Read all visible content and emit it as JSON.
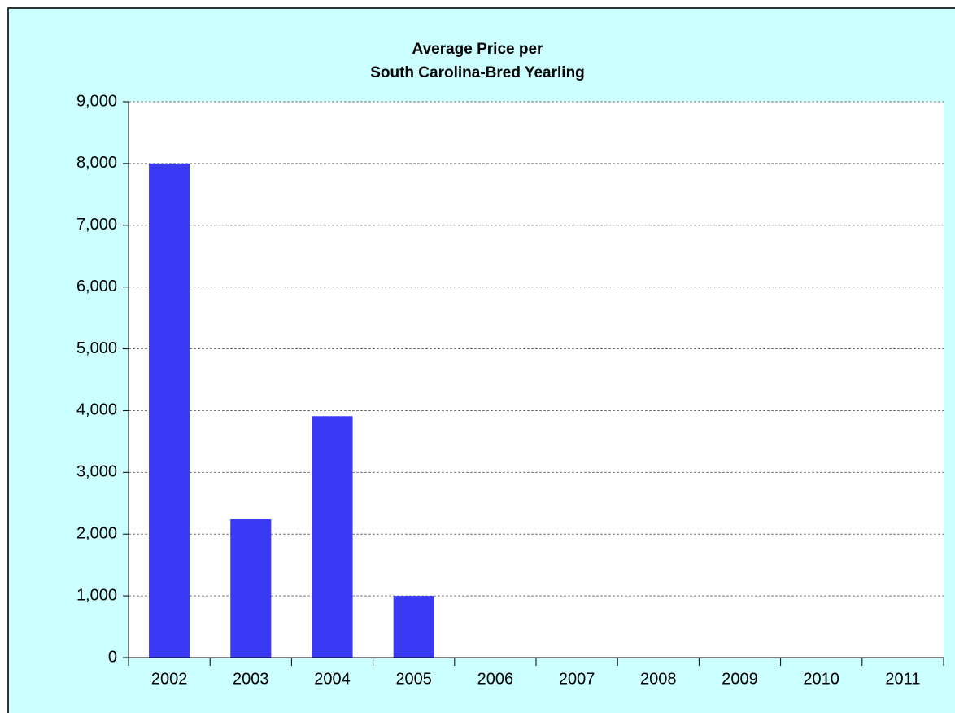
{
  "chart_data": {
    "type": "bar",
    "title": [
      "Average Price per",
      "South Carolina-Bred Yearling"
    ],
    "categories": [
      "2002",
      "2003",
      "2004",
      "2005",
      "2006",
      "2007",
      "2008",
      "2009",
      "2010",
      "2011"
    ],
    "values": [
      8000,
      2240,
      3910,
      1000,
      null,
      null,
      null,
      null,
      null,
      null
    ],
    "color": "#3a3af5",
    "ylim": [
      0,
      9000
    ],
    "yticks": [
      0,
      {
        "value": 1000,
        "label": "1,000"
      },
      {
        "value": 2000,
        "label": "2,000"
      },
      {
        "value": 3000,
        "label": "3,000"
      },
      {
        "value": 4000,
        "label": "4,000"
      },
      {
        "value": 5000,
        "label": "5,000"
      },
      {
        "value": 6000,
        "label": "6,000"
      },
      {
        "value": 7000,
        "label": "7,000"
      },
      {
        "value": 8000,
        "label": "8,000"
      },
      {
        "value": 9000,
        "label": "9,000"
      }
    ],
    "grid": true
  }
}
